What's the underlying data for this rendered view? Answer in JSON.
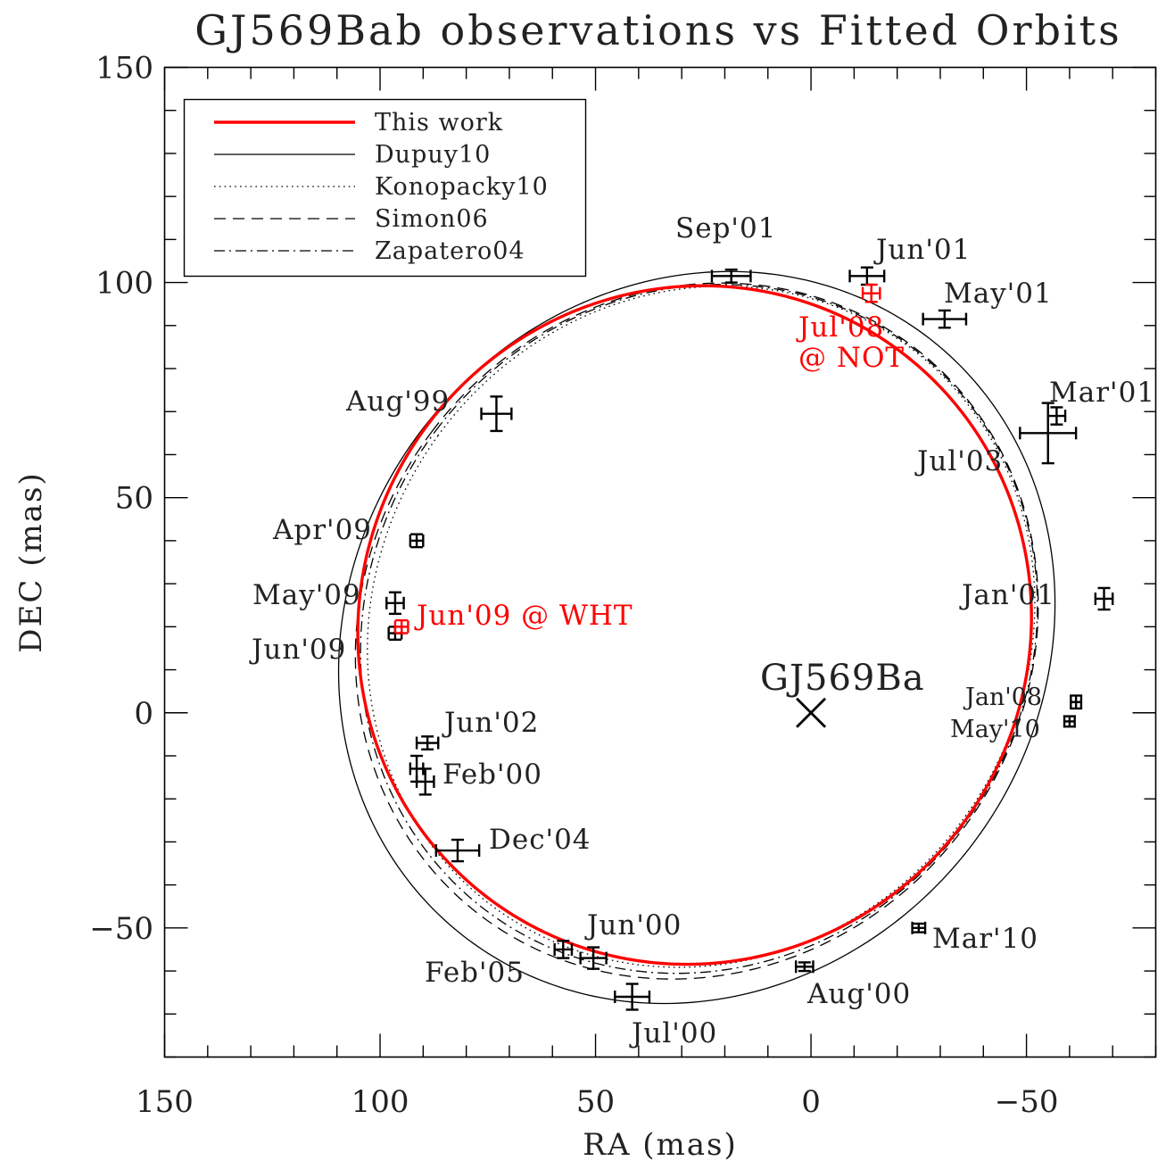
{
  "colors": {
    "this_work": "#ff0000",
    "others": "#000000",
    "background": "#ffffff"
  },
  "chart_data": {
    "type": "scatter",
    "title": "GJ569Bab observations vs Fitted Orbits",
    "xlabel": "RA (mas)",
    "ylabel": "DEC (mas)",
    "xlim": [
      150,
      -80
    ],
    "ylim": [
      -80,
      150
    ],
    "x_reversed": true,
    "xticks": [
      150,
      100,
      50,
      0,
      -50
    ],
    "yticks": [
      150,
      100,
      50,
      0,
      -50
    ],
    "xtick_labels": [
      "150",
      "100",
      "50",
      "0",
      "−50"
    ],
    "ytick_labels": [
      "150",
      "100",
      "50",
      "0",
      "−50"
    ],
    "legend_position": "top-left",
    "series": [
      {
        "name": "This work",
        "style": "solid-thick",
        "color": "#ff0000",
        "center": [
          27,
          20.4
        ],
        "a": 77.5,
        "b": 79.5,
        "rot_deg": 35
      },
      {
        "name": "Dupuy10",
        "style": "solid",
        "color": "#000000",
        "center": [
          26.5,
          17.5
        ],
        "a": 80,
        "b": 88,
        "rot_deg": 38
      },
      {
        "name": "Konopacky10",
        "style": "dotted",
        "color": "#000000",
        "center": [
          25.5,
          20
        ],
        "a": 75.5,
        "b": 81,
        "rot_deg": 36
      },
      {
        "name": "Simon06",
        "style": "dashed",
        "color": "#000000",
        "center": [
          26.5,
          19
        ],
        "a": 77,
        "b": 83,
        "rot_deg": 37
      },
      {
        "name": "Zapatero04",
        "style": "dashdot",
        "color": "#000000",
        "center": [
          26,
          19.5
        ],
        "a": 76.5,
        "b": 82,
        "rot_deg": 37
      }
    ],
    "center_object": {
      "label": "GJ569Ba",
      "x": 0,
      "y": 0
    },
    "observations": [
      {
        "label": "Sep'01",
        "x": 18.5,
        "y": 101.5,
        "xerr": 4.5,
        "yerr": 1.5,
        "color": "#000000"
      },
      {
        "label": "Jun'01",
        "x": -13,
        "y": 101.5,
        "xerr": 4,
        "yerr": 2,
        "color": "#000000"
      },
      {
        "label": "May'01",
        "x": -31,
        "y": 91.5,
        "xerr": 5,
        "yerr": 2,
        "color": "#000000"
      },
      {
        "label": "Mar'01",
        "x": -57,
        "y": 69,
        "xerr": 2,
        "yerr": 2,
        "color": "#000000"
      },
      {
        "label": "Jul'03",
        "x": -55,
        "y": 65,
        "xerr": 6.5,
        "yerr": 7,
        "color": "#000000"
      },
      {
        "label": "Jan'01",
        "x": -68,
        "y": 26.5,
        "xerr": 2,
        "yerr": 2.5,
        "color": "#000000"
      },
      {
        "label": "Jan'08",
        "x": -61.5,
        "y": 2.5,
        "xerr": 1.2,
        "yerr": 1.5,
        "color": "#000000"
      },
      {
        "label": "May'10",
        "x": -60,
        "y": -2,
        "xerr": 1.2,
        "yerr": 1.2,
        "color": "#000000"
      },
      {
        "label": "Mar'10",
        "x": -25,
        "y": -50,
        "xerr": 1.5,
        "yerr": 1,
        "color": "#000000"
      },
      {
        "label": "Aug'00",
        "x": 1.5,
        "y": -59,
        "xerr": 2,
        "yerr": 1,
        "color": "#000000"
      },
      {
        "label": "Jul'00",
        "x": 41.5,
        "y": -66,
        "xerr": 4,
        "yerr": 3,
        "color": "#000000"
      },
      {
        "label": "Jun'00",
        "x": 50.5,
        "y": -57,
        "xerr": 3,
        "yerr": 2.5,
        "color": "#000000"
      },
      {
        "label": "Feb'05",
        "x": 57.5,
        "y": -55,
        "xerr": 2,
        "yerr": 2,
        "color": "#000000"
      },
      {
        "label": "Dec'04",
        "x": 82,
        "y": -32,
        "xerr": 5,
        "yerr": 2.5,
        "color": "#000000"
      },
      {
        "label": "Feb'00",
        "x": 89.5,
        "y": -16,
        "xerr": 2,
        "yerr": 3,
        "color": "#000000"
      },
      {
        "label": "",
        "x": 91.5,
        "y": -13,
        "xerr": 1.5,
        "yerr": 3,
        "color": "#000000"
      },
      {
        "label": "Jun'02",
        "x": 89,
        "y": -7,
        "xerr": 2.5,
        "yerr": 1.5,
        "color": "#000000"
      },
      {
        "label": "Jun'09",
        "x": 96.5,
        "y": 18.5,
        "xerr": 1.5,
        "yerr": 1.5,
        "color": "#000000"
      },
      {
        "label": "May'09",
        "x": 96.5,
        "y": 25.5,
        "xerr": 2,
        "yerr": 2.5,
        "color": "#000000"
      },
      {
        "label": "Apr'09",
        "x": 91.5,
        "y": 40,
        "xerr": 1.5,
        "yerr": 1.5,
        "color": "#000000"
      },
      {
        "label": "Aug'99",
        "x": 73,
        "y": 69.5,
        "xerr": 3.5,
        "yerr": 4,
        "color": "#000000"
      },
      {
        "label": "Jun'09 @ WHT",
        "x": 95,
        "y": 20,
        "xerr": 1.5,
        "yerr": 1.5,
        "color": "#ff0000"
      },
      {
        "label": "Jul'08\n@ NOT",
        "x": -14,
        "y": 97.5,
        "xerr": 2,
        "yerr": 2,
        "color": "#ff0000"
      }
    ]
  }
}
